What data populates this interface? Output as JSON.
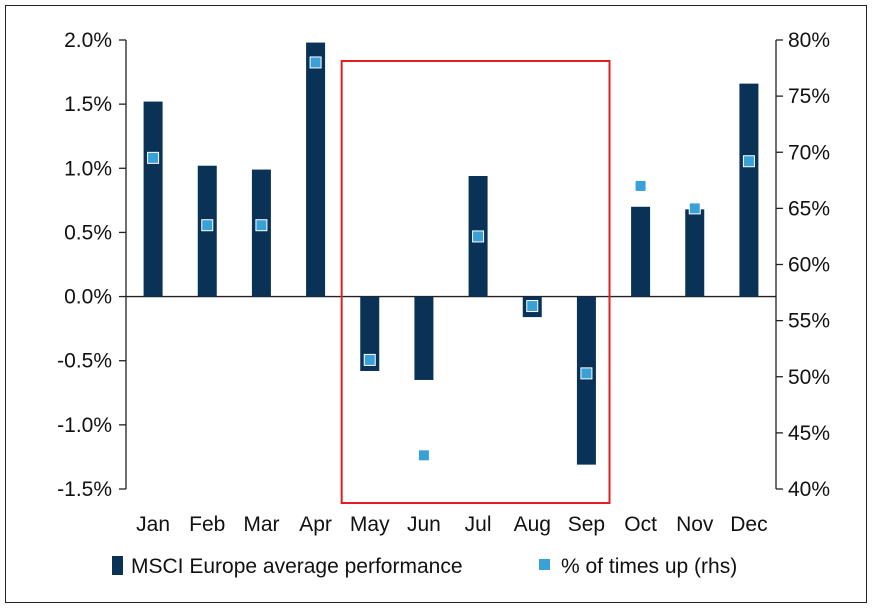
{
  "chart_data": {
    "type": "bar",
    "categories": [
      "Jan",
      "Feb",
      "Mar",
      "Apr",
      "May",
      "Jun",
      "Jul",
      "Aug",
      "Sep",
      "Oct",
      "Nov",
      "Dec"
    ],
    "series": [
      {
        "name": "MSCI Europe average performance",
        "chart": "bar",
        "axis": "left",
        "color": "#0a3256",
        "values": [
          1.52,
          1.02,
          0.99,
          1.98,
          -0.58,
          -0.65,
          0.94,
          -0.16,
          -1.31,
          0.7,
          0.68,
          1.66
        ]
      },
      {
        "name": "% of times up (rhs)",
        "chart": "marker",
        "axis": "right",
        "color": "#3aa0d8",
        "values": [
          69.5,
          63.5,
          63.5,
          78.0,
          51.5,
          43.0,
          62.5,
          56.3,
          50.3,
          67.0,
          65.0,
          69.2
        ]
      }
    ],
    "y_left": {
      "lim": [
        -1.5,
        2.0
      ],
      "ticks": [
        2.0,
        1.5,
        1.0,
        0.5,
        0.0,
        -0.5,
        -1.0,
        -1.5
      ],
      "tick_labels": [
        "2.0%",
        "1.5%",
        "1.0%",
        "0.5%",
        "0.0%",
        "-0.5%",
        "-1.0%",
        "-1.5%"
      ]
    },
    "y_right": {
      "lim": [
        40,
        80
      ],
      "ticks": [
        80,
        75,
        70,
        65,
        60,
        55,
        50,
        45,
        40
      ],
      "tick_labels": [
        "80%",
        "75%",
        "70%",
        "65%",
        "60%",
        "55%",
        "50%",
        "45%",
        "40%"
      ]
    },
    "highlight_box": {
      "from": "May",
      "to": "Sep",
      "color": "#e02020"
    },
    "grid": false,
    "legend_placement": "bottom"
  }
}
